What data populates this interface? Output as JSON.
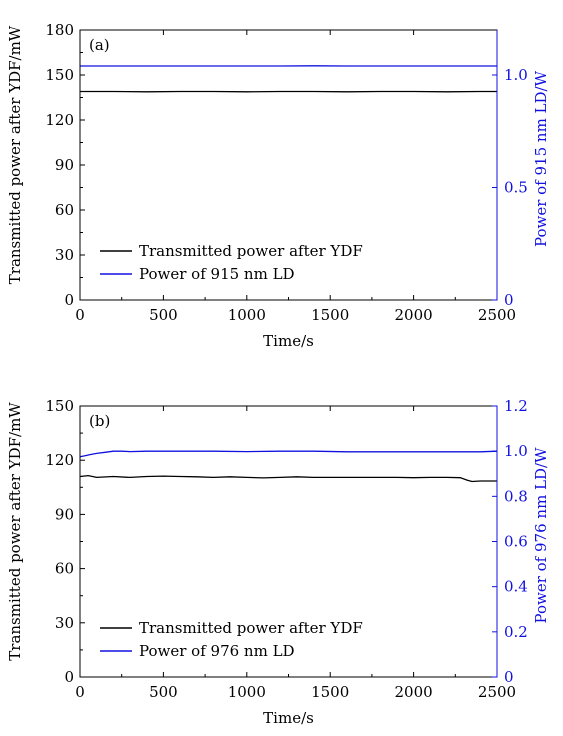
{
  "colors": {
    "transmitted": "#000000",
    "ld_power": "#1010e0",
    "axis": "#000000",
    "right_axis": "#1010e0"
  },
  "chart_data": [
    {
      "type": "line",
      "panel_label": "(a)",
      "xlabel": "Time/s",
      "ylabel": "Transmitted power after YDF/mW",
      "y2label": "Power of 915 nm LD/W",
      "xlim": [
        0,
        2500
      ],
      "ylim": [
        0,
        180
      ],
      "y2lim": [
        0,
        1.2
      ],
      "x_ticks": [
        0,
        500,
        1000,
        1500,
        2000,
        2500
      ],
      "y_ticks": [
        0,
        30,
        60,
        90,
        120,
        150,
        180
      ],
      "y2_ticks": [
        "0",
        "0.5",
        "1.0"
      ],
      "y2_tick_values": [
        0,
        0.5,
        1.0
      ],
      "legend_position": "lower-left",
      "series": [
        {
          "name": "Transmitted power after YDF",
          "axis": "left",
          "color_key": "transmitted",
          "x": [
            0,
            200,
            400,
            600,
            800,
            1000,
            1200,
            1400,
            1600,
            1800,
            2000,
            2200,
            2400,
            2500
          ],
          "y": [
            139,
            139,
            138.8,
            139,
            139,
            138.8,
            139,
            139,
            138.8,
            139,
            139,
            138.8,
            139,
            139
          ]
        },
        {
          "name": "Power of 915 nm LD",
          "axis": "right",
          "color_key": "ld_power",
          "x": [
            0,
            200,
            400,
            600,
            800,
            1000,
            1200,
            1400,
            1600,
            1800,
            2000,
            2200,
            2400,
            2500
          ],
          "y": [
            1.04,
            1.04,
            1.04,
            1.04,
            1.04,
            1.04,
            1.04,
            1.041,
            1.04,
            1.04,
            1.04,
            1.04,
            1.04,
            1.04
          ]
        }
      ]
    },
    {
      "type": "line",
      "panel_label": "(b)",
      "xlabel": "Time/s",
      "ylabel": "Transmitted power after YDF/mW",
      "y2label": "Power of 976 nm LD/W",
      "xlim": [
        0,
        2500
      ],
      "ylim": [
        0,
        150
      ],
      "y2lim": [
        0,
        1.2
      ],
      "x_ticks": [
        0,
        500,
        1000,
        1500,
        2000,
        2500
      ],
      "y_ticks": [
        0,
        30,
        60,
        90,
        120,
        150
      ],
      "y2_ticks": [
        "0",
        "0.2",
        "0.4",
        "0.6",
        "0.8",
        "1.0",
        "1.2"
      ],
      "y2_tick_values": [
        0,
        0.2,
        0.4,
        0.6,
        0.8,
        1.0,
        1.2
      ],
      "legend_position": "lower-left",
      "series": [
        {
          "name": "Transmitted power after YDF",
          "axis": "left",
          "color_key": "transmitted",
          "x": [
            0,
            50,
            100,
            200,
            300,
            400,
            500,
            600,
            700,
            800,
            900,
            1000,
            1100,
            1200,
            1300,
            1400,
            1500,
            1600,
            1700,
            1800,
            1900,
            2000,
            2100,
            2200,
            2280,
            2320,
            2350,
            2400,
            2450,
            2500
          ],
          "y": [
            111,
            111.5,
            110.5,
            111,
            110.5,
            111,
            111.2,
            111,
            110.8,
            110.5,
            110.8,
            110.5,
            110.2,
            110.5,
            110.8,
            110.5,
            110.5,
            110.5,
            110.5,
            110.5,
            110.5,
            110.3,
            110.5,
            110.5,
            110.3,
            109,
            108.2,
            108.5,
            108.5,
            108.5
          ]
        },
        {
          "name": "Power of 976 nm LD",
          "axis": "right",
          "color_key": "ld_power",
          "x": [
            0,
            30,
            60,
            100,
            150,
            200,
            250,
            300,
            400,
            500,
            600,
            800,
            1000,
            1200,
            1400,
            1600,
            1800,
            2000,
            2200,
            2400,
            2500
          ],
          "y": [
            0.975,
            0.98,
            0.985,
            0.99,
            0.995,
            1.0,
            1.0,
            0.998,
            1.0,
            1.0,
            1.0,
            1.0,
            0.998,
            1.0,
            1.0,
            0.997,
            0.997,
            0.997,
            0.997,
            0.997,
            1.0
          ]
        }
      ]
    }
  ]
}
